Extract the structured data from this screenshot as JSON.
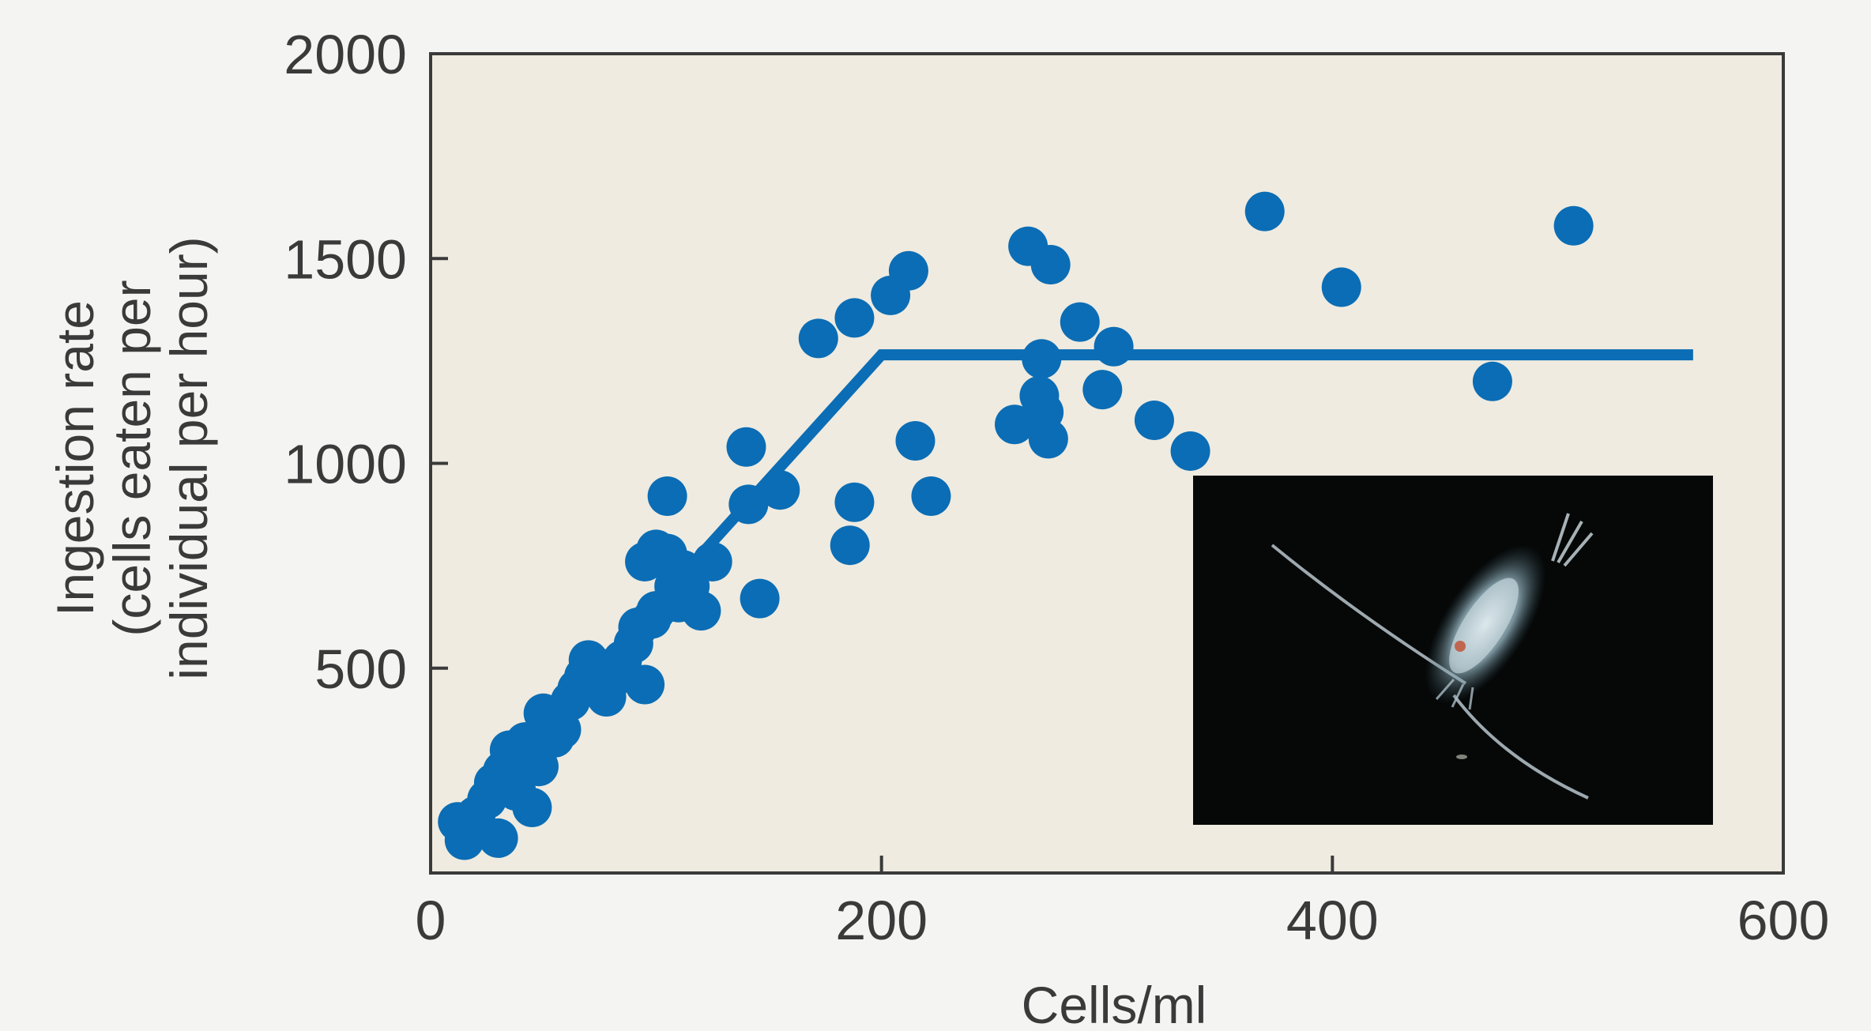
{
  "chart_data": {
    "type": "scatter",
    "title": "",
    "xlabel": "Cells/ml",
    "ylabel": [
      "Ingestion rate",
      "(cells eaten per",
      "individual per hour)"
    ],
    "xlim": [
      0,
      600
    ],
    "ylim": [
      0,
      2000
    ],
    "x_ticks": [
      0,
      200,
      400,
      600
    ],
    "x_tick_labels": [
      "0",
      "200",
      "400",
      "600"
    ],
    "y_ticks": [
      500,
      1000,
      1500,
      2000
    ],
    "y_tick_labels": [
      "500",
      "1000",
      "1500",
      "2000"
    ],
    "grid": false,
    "plot_background": "#efebe0",
    "page_background": "#f4f4f3",
    "series": [
      {
        "kind": "points",
        "color": "#0b6db5",
        "points": [
          [
            12,
            125
          ],
          [
            15,
            80
          ],
          [
            20,
            140
          ],
          [
            30,
            85
          ],
          [
            25,
            180
          ],
          [
            28,
            220
          ],
          [
            32,
            250
          ],
          [
            35,
            300
          ],
          [
            38,
            200
          ],
          [
            40,
            280
          ],
          [
            45,
            160
          ],
          [
            42,
            320
          ],
          [
            48,
            260
          ],
          [
            50,
            390
          ],
          [
            55,
            330
          ],
          [
            58,
            350
          ],
          [
            62,
            420
          ],
          [
            65,
            450
          ],
          [
            68,
            480
          ],
          [
            70,
            520
          ],
          [
            72,
            460
          ],
          [
            75,
            500
          ],
          [
            78,
            430
          ],
          [
            80,
            470
          ],
          [
            85,
            520
          ],
          [
            90,
            560
          ],
          [
            92,
            600
          ],
          [
            95,
            460
          ],
          [
            98,
            620
          ],
          [
            100,
            640
          ],
          [
            95,
            760
          ],
          [
            100,
            790
          ],
          [
            105,
            780
          ],
          [
            105,
            920
          ],
          [
            108,
            700
          ],
          [
            110,
            660
          ],
          [
            112,
            740
          ],
          [
            115,
            700
          ],
          [
            120,
            640
          ],
          [
            125,
            760
          ],
          [
            140,
            1040
          ],
          [
            141,
            900
          ],
          [
            146,
            670
          ],
          [
            155,
            935
          ],
          [
            172,
            1305
          ],
          [
            188,
            1355
          ],
          [
            186,
            800
          ],
          [
            188,
            905
          ],
          [
            204,
            1410
          ],
          [
            212,
            1470
          ],
          [
            215,
            1055
          ],
          [
            222,
            920
          ],
          [
            259,
            1095
          ],
          [
            265,
            1530
          ],
          [
            270,
            1165
          ],
          [
            272,
            1125
          ],
          [
            271,
            1255
          ],
          [
            274,
            1060
          ],
          [
            275,
            1485
          ],
          [
            288,
            1345
          ],
          [
            298,
            1180
          ],
          [
            303,
            1285
          ],
          [
            321,
            1105
          ],
          [
            337,
            1030
          ],
          [
            370,
            1615
          ],
          [
            404,
            1430
          ],
          [
            471,
            1200
          ],
          [
            507,
            1580
          ]
        ]
      },
      {
        "kind": "line",
        "color": "#0b6db5",
        "points": [
          [
            12,
            120
          ],
          [
            200,
            1265
          ],
          [
            560,
            1265
          ]
        ]
      }
    ],
    "inset_photo": {
      "background": "#060808",
      "position": "lower-right",
      "icon": "zooplankton-copepod"
    }
  }
}
